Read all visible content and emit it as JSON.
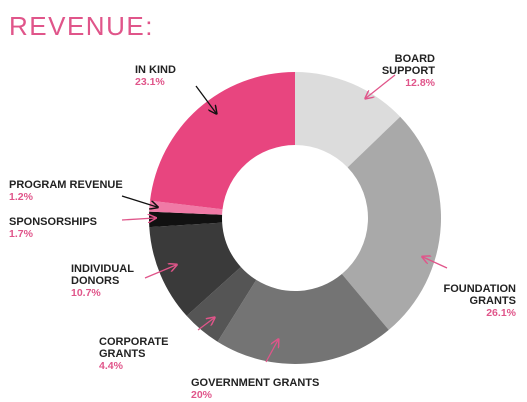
{
  "title": "REVENUE:",
  "colors": {
    "title": "#e0558a",
    "label": "#222222",
    "percent": "#e0558a",
    "arrow_pink": "#e0558a",
    "arrow_dark": "#111111"
  },
  "chart_data": {
    "type": "pie",
    "variant": "donut",
    "title": "REVENUE:",
    "start": "12 o'clock, clockwise",
    "slices": [
      {
        "label": "BOARD SUPPORT",
        "lines": [
          "BOARD",
          "SUPPORT"
        ],
        "value": 12.8,
        "value_label": "12.8%",
        "color": "#dcdcdc"
      },
      {
        "label": "FOUNDATION GRANTS",
        "lines": [
          "FOUNDATION",
          "GRANTS"
        ],
        "value": 26.1,
        "value_label": "26.1%",
        "color": "#a9a9a9"
      },
      {
        "label": "GOVERNMENT GRANTS",
        "lines": [
          "GOVERNMENT GRANTS"
        ],
        "value": 20,
        "value_label": "20%",
        "color": "#747474"
      },
      {
        "label": "CORPORATE GRANTS",
        "lines": [
          "CORPORATE",
          "GRANTS"
        ],
        "value": 4.4,
        "value_label": "4.4%",
        "color": "#555555"
      },
      {
        "label": "INDIVIDUAL DONORS",
        "lines": [
          "INDIVIDUAL",
          "DONORS"
        ],
        "value": 10.7,
        "value_label": "10.7%",
        "color": "#3a3a3a"
      },
      {
        "label": "SPONSORSHIPS",
        "lines": [
          "SPONSORSHIPS"
        ],
        "value": 1.7,
        "value_label": "1.7%",
        "color": "#111111"
      },
      {
        "label": "PROGRAM REVENUE",
        "lines": [
          "PROGRAM REVENUE"
        ],
        "value": 1.2,
        "value_label": "1.2%",
        "color": "#f07aa6"
      },
      {
        "label": "IN KIND",
        "lines": [
          "IN KIND"
        ],
        "value": 23.1,
        "value_label": "23.1%",
        "color": "#e8457f"
      }
    ]
  }
}
